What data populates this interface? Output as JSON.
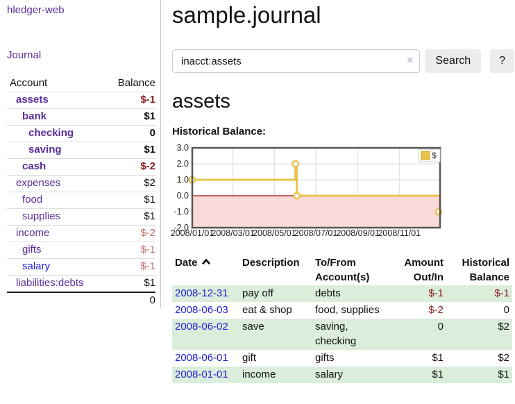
{
  "sidebar": {
    "brand": "hledger-web",
    "nav": {
      "journal": "Journal"
    },
    "accounts": {
      "headers": {
        "account": "Account",
        "balance": "Balance"
      },
      "rows": [
        {
          "name": "assets",
          "balance": "$-1",
          "indent": 1,
          "bold": true,
          "balance_style": "neg"
        },
        {
          "name": "bank",
          "balance": "$1",
          "indent": 2,
          "bold": true,
          "balance_style": "pos"
        },
        {
          "name": "checking",
          "balance": "0",
          "indent": 3,
          "bold": true,
          "balance_style": "pos"
        },
        {
          "name": "saving",
          "balance": "$1",
          "indent": 3,
          "bold": true,
          "balance_style": "pos"
        },
        {
          "name": "cash",
          "balance": "$-2",
          "indent": 2,
          "bold": true,
          "balance_style": "neg"
        },
        {
          "name": "expenses",
          "balance": "$2",
          "indent": 1,
          "bold": false,
          "balance_style": "pos"
        },
        {
          "name": "food",
          "balance": "$1",
          "indent": 2,
          "bold": false,
          "balance_style": "pos"
        },
        {
          "name": "supplies",
          "balance": "$1",
          "indent": 2,
          "bold": false,
          "balance_style": "pos"
        },
        {
          "name": "income",
          "balance": "$-2",
          "indent": 1,
          "bold": false,
          "balance_style": "neg-faded"
        },
        {
          "name": "gifts",
          "balance": "$-1",
          "indent": 2,
          "bold": false,
          "balance_style": "neg-faded"
        },
        {
          "name": "salary",
          "balance": "$-1",
          "indent": 2,
          "bold": false,
          "balance_style": "neg-faded",
          "link_style": "unvisited"
        },
        {
          "name": "liabilities:debts",
          "balance": "$1",
          "indent": 1,
          "bold": false,
          "balance_style": "pos"
        }
      ],
      "total": "0"
    }
  },
  "main": {
    "title": "sample.journal",
    "search": {
      "value": "inacct:assets",
      "clear": "×",
      "search_button": "Search",
      "help_button": "?"
    },
    "account_heading": "assets",
    "chart_label": "Historical Balance:"
  },
  "chart_data": {
    "type": "line",
    "step": true,
    "title": "Historical Balance",
    "series": [
      {
        "name": "$",
        "points": [
          {
            "date": "2008-01-01",
            "value": 1
          },
          {
            "date": "2008-06-01",
            "value": 2
          },
          {
            "date": "2008-06-03",
            "value": 0
          },
          {
            "date": "2008-12-31",
            "value": -1
          }
        ]
      }
    ],
    "x_domain": [
      "2008-01-01",
      "2008-12-31"
    ],
    "ylim": [
      -2,
      3
    ],
    "y_ticks": [
      3,
      2,
      1,
      0,
      -1,
      -2
    ],
    "y_tick_labels": [
      "3.0",
      "2.0",
      "1.0",
      "0.0",
      "-1.0",
      "-2.0"
    ],
    "x_ticks": [
      {
        "date": "2008-01-01",
        "label": "2008/01/01"
      },
      {
        "date": "2008-03-01",
        "label": "2008/03/01"
      },
      {
        "date": "2008-05-01",
        "label": "2008/05/01"
      },
      {
        "date": "2008-07-01",
        "label": "2008/07/01"
      },
      {
        "date": "2008-09-01",
        "label": "2008/09/01"
      },
      {
        "date": "2008-11-01",
        "label": "2008/11/01"
      }
    ],
    "legend": {
      "label": "$",
      "position": "top-right"
    },
    "grid": true,
    "colors": {
      "line": "#e8c44f",
      "marker_fill": "#ffffff",
      "swatch_border": "#c9a227",
      "negative_area": "#fbdada",
      "zero_line": "#991111",
      "grid": "#dddddd",
      "frame": "#555555",
      "tick_text": "#222222"
    }
  },
  "register": {
    "headers": [
      {
        "lines": [
          "Date"
        ],
        "sorted": "asc",
        "align": "left"
      },
      {
        "lines": [
          "Description"
        ],
        "align": "left"
      },
      {
        "lines": [
          "To/From",
          "Account(s)"
        ],
        "align": "left"
      },
      {
        "lines": [
          "Amount",
          "Out/In"
        ],
        "align": "right"
      },
      {
        "lines": [
          "Historical",
          "Balance"
        ],
        "align": "right"
      }
    ],
    "rows": [
      {
        "date": "2008-12-31",
        "description": "pay off",
        "accounts": "debts",
        "amount": "$-1",
        "balance": "$-1"
      },
      {
        "date": "2008-06-03",
        "description": "eat & shop",
        "accounts": "food, supplies",
        "amount": "$-2",
        "balance": "0"
      },
      {
        "date": "2008-06-02",
        "description": "save",
        "accounts": "saving, checking",
        "amount": "0",
        "balance": "$2"
      },
      {
        "date": "2008-06-01",
        "description": "gift",
        "accounts": "gifts",
        "amount": "$1",
        "balance": "$2"
      },
      {
        "date": "2008-01-01",
        "description": "income",
        "accounts": "salary",
        "amount": "$1",
        "balance": "$1"
      }
    ]
  }
}
